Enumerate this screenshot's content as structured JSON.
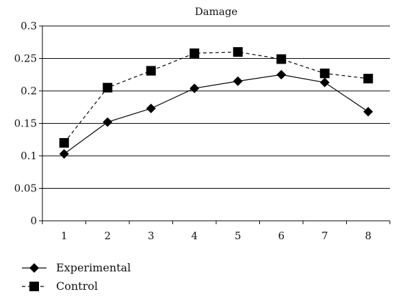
{
  "chart_data": {
    "type": "line",
    "title": "Damage",
    "xlabel": "",
    "ylabel": "",
    "categories": [
      "1",
      "2",
      "3",
      "4",
      "5",
      "6",
      "7",
      "8"
    ],
    "ylim": [
      0,
      0.3
    ],
    "yticks": [
      "0",
      "0.05",
      "0.1",
      "0.15",
      "0.2",
      "0.25",
      "0.3"
    ],
    "grid": true,
    "legend_position": "bottom-left",
    "series": [
      {
        "name": "Experimental",
        "values": [
          0.103,
          0.152,
          0.173,
          0.204,
          0.215,
          0.225,
          0.213,
          0.168
        ],
        "marker": "diamond",
        "line_style": "solid",
        "color": "#000000"
      },
      {
        "name": "Control",
        "values": [
          0.12,
          0.205,
          0.231,
          0.258,
          0.26,
          0.249,
          0.227,
          0.219
        ],
        "marker": "square",
        "line_style": "dashed",
        "color": "#000000"
      }
    ]
  }
}
